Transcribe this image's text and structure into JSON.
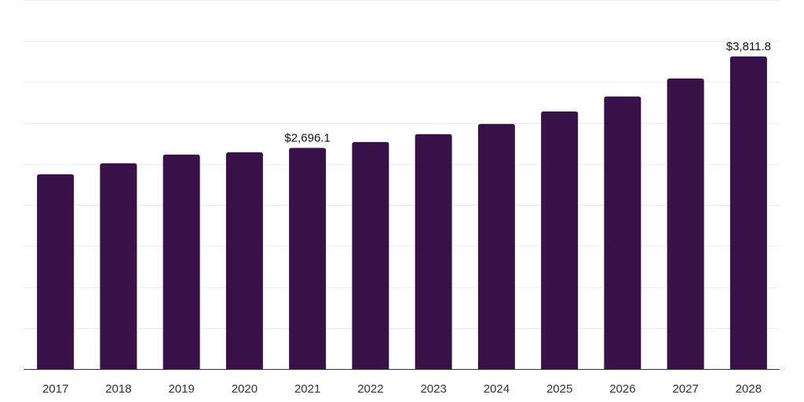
{
  "chart_data": {
    "type": "bar",
    "title": "",
    "xlabel": "",
    "ylabel": "",
    "categories": [
      "2017",
      "2018",
      "2019",
      "2020",
      "2021",
      "2022",
      "2023",
      "2024",
      "2025",
      "2026",
      "2027",
      "2028"
    ],
    "values": [
      2375,
      2509,
      2615,
      2643,
      2696.1,
      2768,
      2864,
      2988,
      3141,
      3323,
      3543,
      3811.8
    ],
    "data_labels": {
      "4": "$2,696.1",
      "11": "$3,811.8"
    },
    "ylim": [
      0,
      4500
    ],
    "grid_step": 500,
    "grid": true,
    "y_tick_labels_visible": false,
    "bar_color": "#371148",
    "grid_color": "#eeeeee",
    "axis_color": "#333333"
  }
}
